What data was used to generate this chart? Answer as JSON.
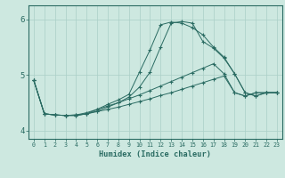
{
  "xlabel": "Humidex (Indice chaleur)",
  "background_color": "#cde8e0",
  "grid_color": "#aacfc7",
  "line_color": "#2a6b62",
  "xlim": [
    -0.5,
    23.5
  ],
  "ylim": [
    3.85,
    6.25
  ],
  "yticks": [
    4,
    5,
    6
  ],
  "xticks": [
    0,
    1,
    2,
    3,
    4,
    5,
    6,
    7,
    8,
    9,
    10,
    11,
    12,
    13,
    14,
    15,
    16,
    17,
    18,
    19,
    20,
    21,
    22,
    23
  ],
  "line1_x": [
    0,
    1,
    2,
    3,
    4,
    5,
    6,
    7,
    8,
    9,
    10,
    11,
    12,
    13,
    14,
    15,
    16,
    17,
    18,
    19,
    20,
    21,
    22,
    23
  ],
  "line1_y": [
    4.9,
    4.3,
    4.28,
    4.27,
    4.27,
    4.3,
    4.35,
    4.42,
    4.5,
    4.6,
    4.78,
    5.05,
    5.5,
    5.93,
    5.96,
    5.93,
    5.6,
    5.48,
    5.3,
    5.02,
    4.68,
    4.62,
    4.68,
    4.68
  ],
  "line2_x": [
    0,
    1,
    2,
    3,
    4,
    5,
    6,
    7,
    8,
    9,
    10,
    11,
    12,
    13,
    14,
    15,
    16,
    17,
    18,
    19,
    20,
    21,
    22,
    23
  ],
  "line2_y": [
    4.9,
    4.3,
    4.28,
    4.27,
    4.27,
    4.3,
    4.38,
    4.47,
    4.55,
    4.65,
    5.05,
    5.45,
    5.9,
    5.95,
    5.93,
    5.85,
    5.72,
    5.5,
    5.32,
    5.02,
    4.68,
    4.62,
    4.68,
    4.68
  ],
  "line3_x": [
    0,
    1,
    2,
    3,
    4,
    5,
    6,
    7,
    8,
    9,
    10,
    11,
    12,
    13,
    14,
    15,
    16,
    17,
    18,
    19,
    20,
    21,
    22,
    23
  ],
  "line3_y": [
    4.9,
    4.3,
    4.28,
    4.27,
    4.28,
    4.32,
    4.38,
    4.44,
    4.5,
    4.57,
    4.64,
    4.72,
    4.8,
    4.88,
    4.96,
    5.04,
    5.12,
    5.2,
    5.02,
    4.68,
    4.62,
    4.68,
    4.68,
    4.68
  ],
  "line4_x": [
    0,
    1,
    2,
    3,
    4,
    5,
    6,
    7,
    8,
    9,
    10,
    11,
    12,
    13,
    14,
    15,
    16,
    17,
    18,
    19,
    20,
    21,
    22,
    23
  ],
  "line4_y": [
    4.9,
    4.3,
    4.28,
    4.27,
    4.28,
    4.3,
    4.34,
    4.38,
    4.42,
    4.47,
    4.52,
    4.57,
    4.63,
    4.68,
    4.74,
    4.8,
    4.86,
    4.92,
    4.98,
    4.68,
    4.62,
    4.68,
    4.68,
    4.68
  ]
}
